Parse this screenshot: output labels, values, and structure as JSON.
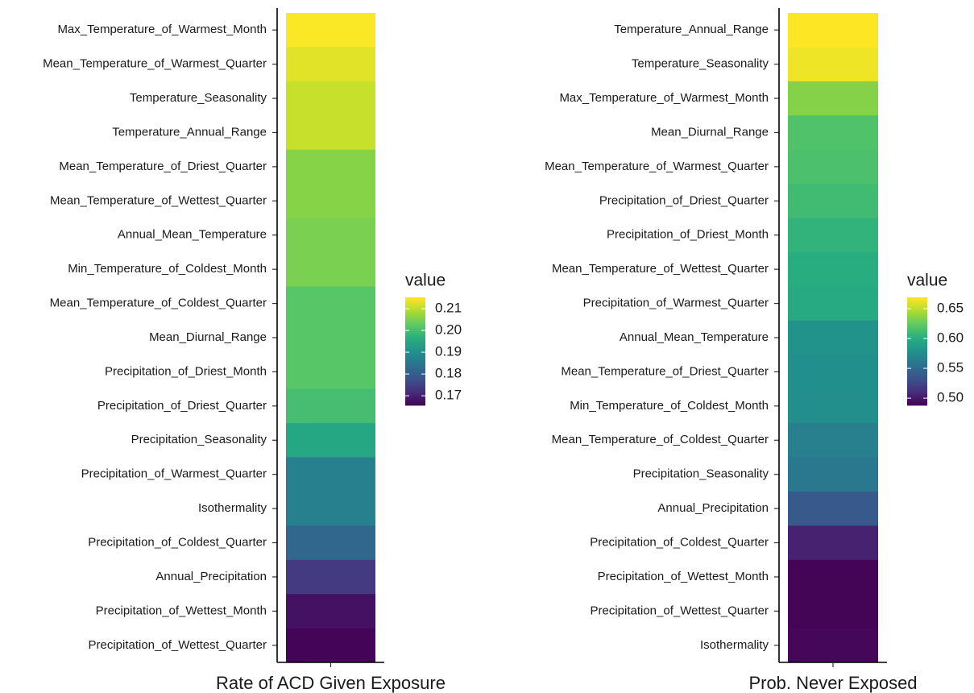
{
  "chart_data": [
    {
      "type": "heatmap",
      "x_categories": [
        "Rate of ACD Given Exposure"
      ],
      "categories": [
        "Max_Temperature_of_Warmest_Month",
        "Mean_Temperature_of_Warmest_Quarter",
        "Temperature_Seasonality",
        "Temperature_Annual_Range",
        "Mean_Temperature_of_Driest_Quarter",
        "Mean_Temperature_of_Wettest_Quarter",
        "Annual_Mean_Temperature",
        "Min_Temperature_of_Coldest_Month",
        "Mean_Temperature_of_Coldest_Quarter",
        "Mean_Diurnal_Range",
        "Precipitation_of_Driest_Month",
        "Precipitation_of_Driest_Quarter",
        "Precipitation_Seasonality",
        "Precipitation_of_Warmest_Quarter",
        "Isothermality",
        "Precipitation_of_Coldest_Quarter",
        "Annual_Precipitation",
        "Precipitation_of_Wettest_Month",
        "Precipitation_of_Wettest_Quarter"
      ],
      "values": [
        0.215,
        0.213,
        0.211,
        0.211,
        0.206,
        0.206,
        0.205,
        0.205,
        0.202,
        0.202,
        0.202,
        0.2,
        0.195,
        0.187,
        0.187,
        0.182,
        0.174,
        0.168,
        0.166
      ],
      "colormap": "viridis",
      "colorbar_title": "value",
      "colorbar_lim": [
        0.1656,
        0.2152
      ],
      "colorbar_ticks": [
        0.17,
        0.18,
        0.19,
        {
          "value": 0.2,
          "label": "0.20"
        },
        0.21
      ]
    },
    {
      "type": "heatmap",
      "x_categories": [
        "Prob. Never Exposed"
      ],
      "categories": [
        "Temperature_Annual_Range",
        "Temperature_Seasonality",
        "Max_Temperature_of_Warmest_Month",
        "Mean_Diurnal_Range",
        "Mean_Temperature_of_Warmest_Quarter",
        "Precipitation_of_Driest_Quarter",
        "Precipitation_of_Driest_Month",
        "Mean_Temperature_of_Wettest_Quarter",
        "Precipitation_of_Warmest_Quarter",
        "Annual_Mean_Temperature",
        "Mean_Temperature_of_Driest_Quarter",
        "Min_Temperature_of_Coldest_Month",
        "Mean_Temperature_of_Coldest_Quarter",
        "Precipitation_Seasonality",
        "Annual_Precipitation",
        "Precipitation_of_Coldest_Quarter",
        "Precipitation_of_Wettest_Month",
        "Precipitation_of_Wettest_Quarter",
        "Isothermality"
      ],
      "values": [
        0.669,
        0.665,
        0.635,
        0.618,
        0.616,
        0.612,
        0.605,
        0.6,
        0.598,
        0.58,
        0.578,
        0.577,
        0.565,
        0.56,
        0.538,
        0.505,
        0.49,
        0.49,
        0.491
      ],
      "colormap": "viridis",
      "colorbar_title": "value",
      "colorbar_lim": [
        0.488,
        0.669
      ],
      "colorbar_ticks": [
        {
          "value": 0.5,
          "label": "0.50"
        },
        0.55,
        {
          "value": 0.6,
          "label": "0.60"
        },
        0.65
      ]
    }
  ]
}
